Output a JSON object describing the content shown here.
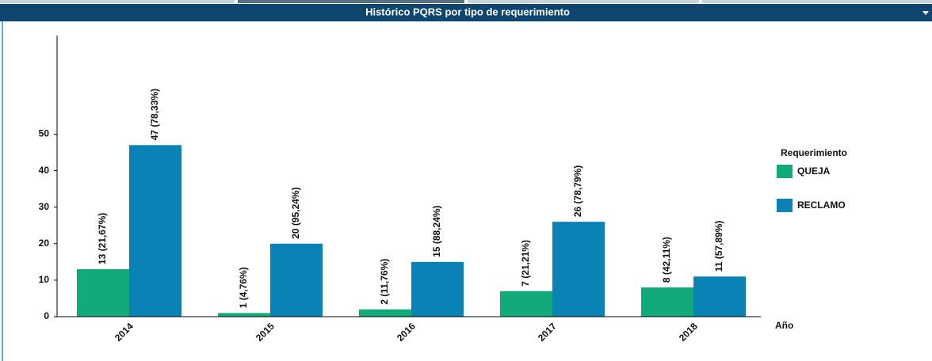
{
  "chart_data": {
    "type": "bar",
    "title": "Histórico PQRS por tipo de requerimiento",
    "categories": [
      "2014",
      "2015",
      "2016",
      "2017",
      "2018"
    ],
    "series": [
      {
        "name": "QUEJA",
        "color": "#12a97b",
        "values": [
          13,
          1,
          2,
          7,
          8
        ],
        "value_labels": [
          "13 (21,67%)",
          "1 (4,76%)",
          "2 (11,76%)",
          "7 (21,21%)",
          "8 (42,11%)"
        ]
      },
      {
        "name": "RECLAMO",
        "color": "#0b82b5",
        "values": [
          47,
          20,
          15,
          26,
          11
        ],
        "value_labels": [
          "47 (78,33%)",
          "20 (95,24%)",
          "15 (88,24%)",
          "26 (78,79%)",
          "11 (57,89%)"
        ]
      }
    ],
    "xlabel": "Año",
    "legend_title": "Requerimiento",
    "legend": "right",
    "ylim": [
      0,
      77
    ],
    "yticks": [
      0,
      10,
      20,
      30,
      40,
      50
    ],
    "grid": false
  }
}
